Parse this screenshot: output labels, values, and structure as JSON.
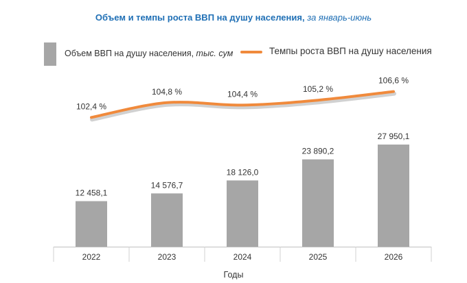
{
  "title": {
    "main": "Объем и темпы роста ВВП на душу населения,",
    "sub": " за январь-июнь"
  },
  "legend": {
    "bar_label": "Объем ВВП на душу населения,",
    "bar_unit": " тыс. сум",
    "line_label": "Темпы роста ВВП на душу населения"
  },
  "colors": {
    "bar": "#a6a6a6",
    "line": "#f08a3c",
    "title": "#1f6fb5"
  },
  "chart_data": {
    "type": "bar",
    "categories": [
      "2022",
      "2023",
      "2024",
      "2025",
      "2026"
    ],
    "xlabel": "Годы",
    "ylabel": "",
    "series": [
      {
        "name": "Объем ВВП на душу населения, тыс. сум",
        "type": "bar",
        "values": [
          12458.1,
          14576.7,
          18126.0,
          23890.2,
          27950.1
        ],
        "labels": [
          "12 458,1",
          "14 576,7",
          "18 126,0",
          "23 890,2",
          "27 950,1"
        ]
      },
      {
        "name": "Темпы роста ВВП на душу населения",
        "type": "line",
        "values": [
          102.4,
          104.8,
          104.4,
          105.2,
          106.6
        ],
        "labels": [
          "102,4 %",
          "104,8 %",
          "104,4 %",
          "105,2 %",
          "106,6 %"
        ]
      }
    ],
    "grid": false,
    "legend_position": "top"
  }
}
